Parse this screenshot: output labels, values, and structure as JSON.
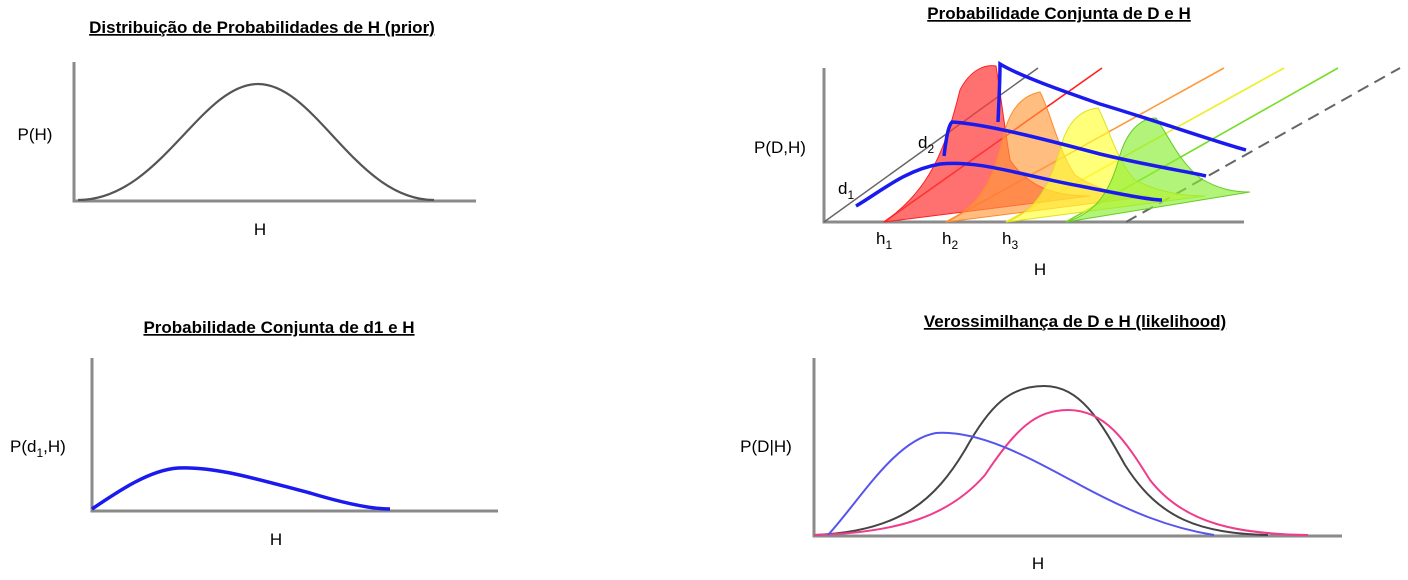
{
  "panel_prior": {
    "title": "Distribuição de Probabilidades de H (prior)",
    "ylabel": "P(H)",
    "xlabel": "H"
  },
  "panel_joint": {
    "title": "Probabilidade Conjunta de D e H",
    "ylabel": "P(D,H)",
    "xlabel": "H",
    "d1_base": "d",
    "d1_sub": "1",
    "d2_base": "d",
    "d2_sub": "2",
    "h1_base": "h",
    "h1_sub": "1",
    "h2_base": "h",
    "h2_sub": "2",
    "h3_base": "h",
    "h3_sub": "3"
  },
  "panel_joint_d1": {
    "title": "Probabilidade Conjunta de d1 e H",
    "ylabel_pre": "P(d",
    "ylabel_sub": "1",
    "ylabel_post": ",H)",
    "xlabel": "H"
  },
  "panel_likelihood": {
    "title": "Verossimilhança de D e H (likelihood)",
    "ylabel": "P(D|H)",
    "xlabel": "H"
  },
  "colors": {
    "axis": "#8a8a8a",
    "prior_curve": "#555555",
    "joint_curve": "#1a1aee",
    "slice_red": "#ff3a3a",
    "slice_orange": "#ff9a3a",
    "slice_yellow": "#ffff33",
    "slice_green": "#88ee33",
    "likelihood_black": "#444444",
    "likelihood_pink": "#ee3d8a",
    "likelihood_blue": "#5555ee"
  }
}
